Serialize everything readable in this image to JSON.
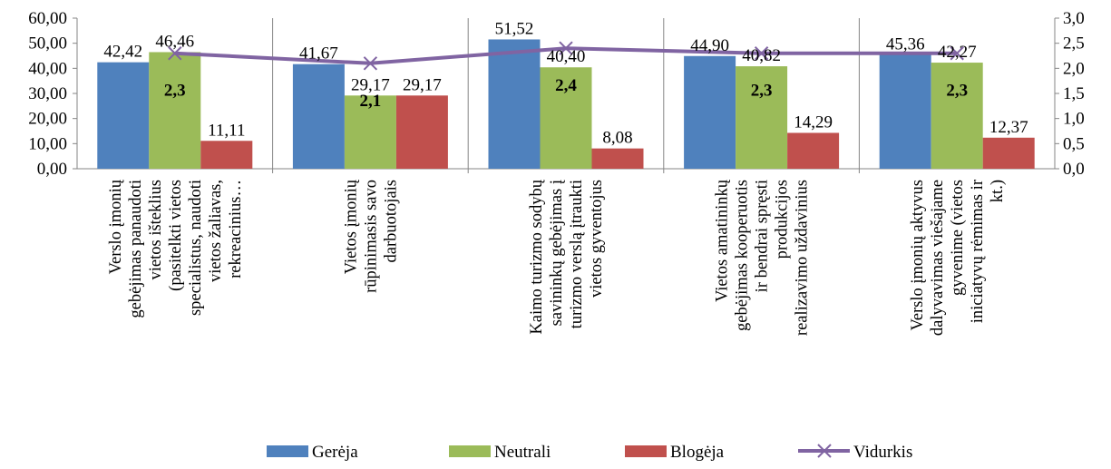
{
  "chart_data": {
    "type": "bar",
    "categories": [
      [
        "Verslo įmonių",
        "gebėjimas panaudoti",
        "vietos išteklius",
        "(pasitelkti vietos",
        "specialistus, naudoti",
        "vietos žaliavas,",
        "rekreacinius…"
      ],
      [
        "Vietos įmonių",
        "rūpinimasis savo",
        "darbuotojais"
      ],
      [
        "Kaimo turizmo sodybų",
        "savininkų gebėjimas į",
        "turizmo verslą įtraukti",
        "vietos gyventojus"
      ],
      [
        "Vietos amatininkų",
        "gebėjimas kooperuotis",
        "ir bendrai spręsti",
        "produkcijos",
        "realizavimo uždavinius"
      ],
      [
        "Verslo įmonių aktyvus",
        "dalyvavimas viešajame",
        "gyvenime (vietos",
        "iniciatyvų rėmimas ir",
        "kt.)"
      ]
    ],
    "series": [
      {
        "name": "Gerėja",
        "values": [
          42.42,
          41.67,
          51.52,
          44.9,
          45.36
        ],
        "labels": [
          "42,42",
          "41,67",
          "51,52",
          "44,90",
          "45,36"
        ],
        "color": "#4f81bd"
      },
      {
        "name": "Neutrali",
        "values": [
          46.46,
          29.17,
          40.4,
          40.82,
          42.27
        ],
        "labels": [
          "46,46",
          "29,17",
          "40,40",
          "40,82",
          "42,27"
        ],
        "color": "#9bbb59"
      },
      {
        "name": "Blogėja",
        "values": [
          11.11,
          29.17,
          8.08,
          14.29,
          12.37
        ],
        "labels": [
          "11,11",
          "29,17",
          "8,08",
          "14,29",
          "12,37"
        ],
        "color": "#c0504d"
      }
    ],
    "line_series": {
      "name": "Vidurkis",
      "axis": "right",
      "values": [
        2.3,
        2.1,
        2.4,
        2.3,
        2.3
      ],
      "labels": [
        "2,3",
        "2,1",
        "2,4",
        "2,3",
        "2,3"
      ],
      "color": "#8064a2"
    },
    "y_left": {
      "min": 0,
      "max": 60,
      "step": 10,
      "tick_labels": [
        "0,00",
        "10,00",
        "20,00",
        "30,00",
        "40,00",
        "50,00",
        "60,00"
      ]
    },
    "y_right": {
      "min": 0,
      "max": 3,
      "step": 0.5,
      "tick_labels": [
        "0,0",
        "0,5",
        "1,0",
        "1,5",
        "2,0",
        "2,5",
        "3,0"
      ]
    },
    "legend_position": "bottom",
    "grid": false
  }
}
